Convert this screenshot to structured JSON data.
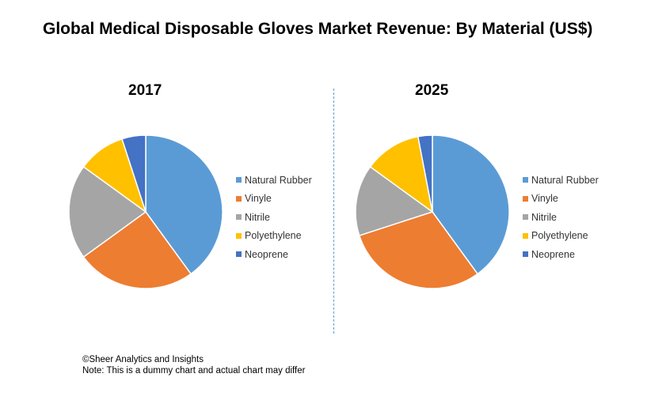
{
  "title": "Global Medical Disposable Gloves Market Revenue: By Material (US$)",
  "footer": {
    "source": "©Sheer Analytics and Insights",
    "note": "Note: This is a dummy chart and actual chart may differ"
  },
  "chart_data": [
    {
      "type": "pie",
      "title": "2017",
      "labels": [
        "Natural Rubber",
        "Vinyle",
        "Nitrile",
        "Polyethylene",
        "Neoprene"
      ],
      "values": [
        40,
        25,
        20,
        10,
        5
      ],
      "colors": [
        "#5b9bd5",
        "#ed7d31",
        "#a5a5a5",
        "#ffc000",
        "#4472c4"
      ],
      "legend": "right"
    },
    {
      "type": "pie",
      "title": "2025",
      "labels": [
        "Natural Rubber",
        "Vinyle",
        "Nitrile",
        "Polyethylene",
        "Neoprene"
      ],
      "values": [
        40,
        30,
        15,
        12,
        3
      ],
      "colors": [
        "#5b9bd5",
        "#ed7d31",
        "#a5a5a5",
        "#ffc000",
        "#4472c4"
      ],
      "legend": "right"
    }
  ]
}
